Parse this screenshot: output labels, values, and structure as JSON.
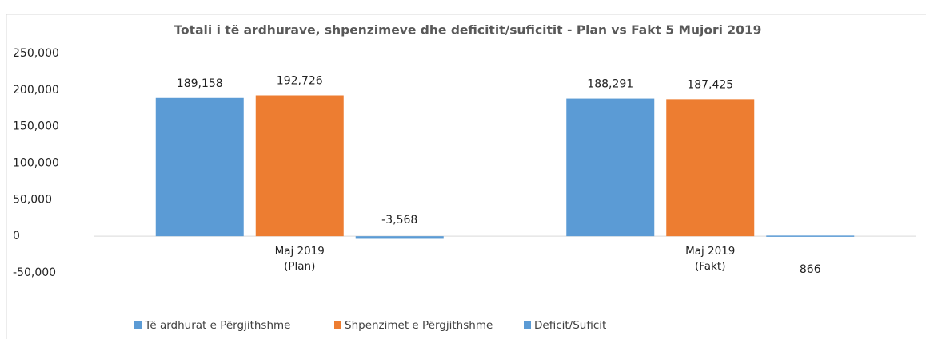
{
  "chart_data": {
    "type": "bar",
    "title": "Totali i të ardhurave, shpenzimeve dhe deficitit/suficitit - Plan vs Fakt  5 Mujori 2019",
    "categories": [
      "Maj 2019\n(Plan)",
      "Maj 2019\n(Fakt)"
    ],
    "series": [
      {
        "name": "Të ardhurat e Përgjithshme",
        "color": "#5b9bd5",
        "values": [
          189158,
          188291
        ],
        "value_labels": [
          "189,158",
          "188,291"
        ]
      },
      {
        "name": "Shpenzimet e Përgjithshme",
        "color": "#ed7d31",
        "values": [
          192726,
          187425
        ],
        "value_labels": [
          "192,726",
          "187,425"
        ]
      },
      {
        "name": "Deficit/Suficit",
        "color": "#5b9bd5",
        "values": [
          -3568,
          866
        ],
        "value_labels": [
          "-3,568",
          "866"
        ]
      }
    ],
    "ylim": [
      -50000,
      250000
    ],
    "yticks": [
      {
        "value": -50000,
        "label": "-50,000"
      },
      0,
      {
        "value": 50000,
        "label": "50,000"
      },
      {
        "value": 100000,
        "label": "100,000"
      },
      {
        "value": 150000,
        "label": "150,000"
      },
      {
        "value": 200000,
        "label": "200,000"
      },
      {
        "value": 250000,
        "label": "250,000"
      }
    ],
    "legend": "bottom"
  }
}
